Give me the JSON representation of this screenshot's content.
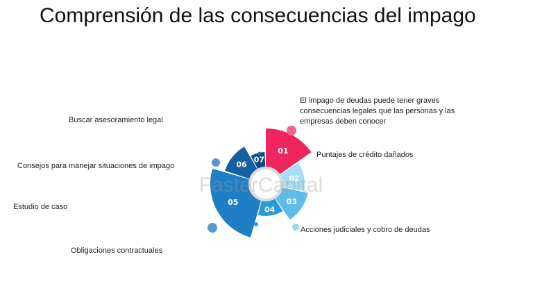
{
  "title": "Comprensión de las consecuencias del impago",
  "intro": "El impago de deudas puede tener graves consecuencias legales que las personas y las empresas deben conocer",
  "labels": {
    "l1": "Puntajes de crédito dañados",
    "l3": "Acciones judiciales y cobro de deudas",
    "l4": "Obligaciones contractuales",
    "l5": "Estudio de caso",
    "l6": "Consejos para manejar situaciones de impago",
    "l7": "Buscar asesoramiento legal"
  },
  "segments": [
    {
      "num": "01",
      "color": "#f0245e"
    },
    {
      "num": "02",
      "color": "#a8def4"
    },
    {
      "num": "03",
      "color": "#5cbde9"
    },
    {
      "num": "04",
      "color": "#2a9ad8"
    },
    {
      "num": "05",
      "color": "#1f7fc6"
    },
    {
      "num": "06",
      "color": "#165fa0"
    },
    {
      "num": "07",
      "color": "#0f4a7d"
    }
  ],
  "watermark": "FasterCapital"
}
